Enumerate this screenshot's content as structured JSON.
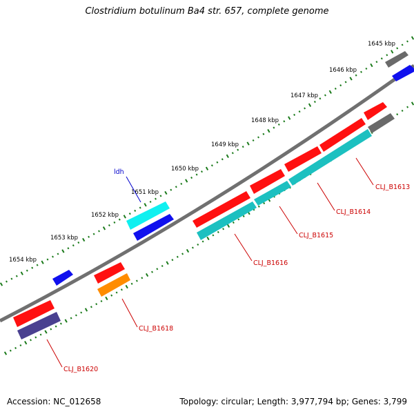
{
  "title": "Clostridium botulinum Ba4 str. 657, complete genome",
  "footer": {
    "accession": "Accession: NC_012658",
    "topology": "Topology: circular; Length: 3,977,794 bp; Genes: 3,799"
  },
  "ruler": {
    "ticks": [
      {
        "label": "1645 kbp"
      },
      {
        "label": "1646 kbp"
      },
      {
        "label": "1647 kbp"
      },
      {
        "label": "1648 kbp"
      },
      {
        "label": "1649 kbp"
      },
      {
        "label": "1650 kbp"
      },
      {
        "label": "1651 kbp"
      },
      {
        "label": "1652 kbp"
      },
      {
        "label": "1653 kbp"
      },
      {
        "label": "1654 kbp"
      }
    ]
  },
  "gene_labels": [
    {
      "label": "ldh",
      "color": "#0000cc"
    },
    {
      "label": "CLJ_B1613",
      "color": "#cc0000"
    },
    {
      "label": "CLJ_B1614",
      "color": "#cc0000"
    },
    {
      "label": "CLJ_B1615",
      "color": "#cc0000"
    },
    {
      "label": "CLJ_B1616",
      "color": "#cc0000"
    },
    {
      "label": "CLJ_B1618",
      "color": "#cc0000"
    },
    {
      "label": "CLJ_B1620",
      "color": "#cc0000"
    }
  ],
  "colors": {
    "backbone": "#808080",
    "ruler_dots": "#1a7a1a",
    "cds": "#ff0000",
    "gene_teal": "#20b8b8",
    "gene_blue": "#0000ee",
    "gene_cyan": "#00e8e8",
    "gene_gray": "#606060",
    "gene_orange": "#ff8c00",
    "gene_indigo": "#4a4090"
  }
}
